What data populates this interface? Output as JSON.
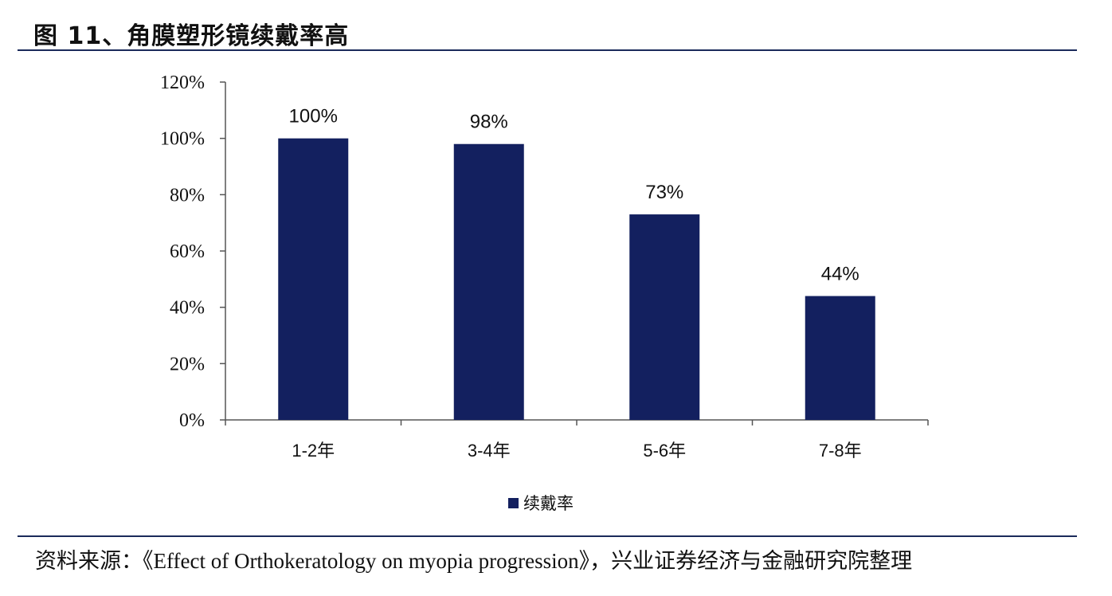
{
  "figure": {
    "title": "图 11、角膜塑形镜续戴率高",
    "source": "资料来源：《Effect of Orthokeratology on myopia progression》，兴业证券经济与金融研究院整理"
  },
  "colors": {
    "bar": "#13205f",
    "axis": "#555555",
    "rule": "#1a2a5a"
  },
  "chart_data": {
    "type": "bar",
    "categories": [
      "1-2年",
      "3-4年",
      "5-6年",
      "7-8年"
    ],
    "series": [
      {
        "name": "续戴率",
        "values": [
          100,
          98,
          73,
          44
        ]
      }
    ],
    "data_labels": [
      "100%",
      "98%",
      "73%",
      "44%"
    ],
    "y_ticks": [
      0,
      20,
      40,
      60,
      80,
      100,
      120
    ],
    "y_tick_labels": [
      "0%",
      "20%",
      "40%",
      "60%",
      "80%",
      "100%",
      "120%"
    ],
    "ylim": [
      0,
      120
    ],
    "grid": false,
    "legend_position": "bottom-center"
  }
}
